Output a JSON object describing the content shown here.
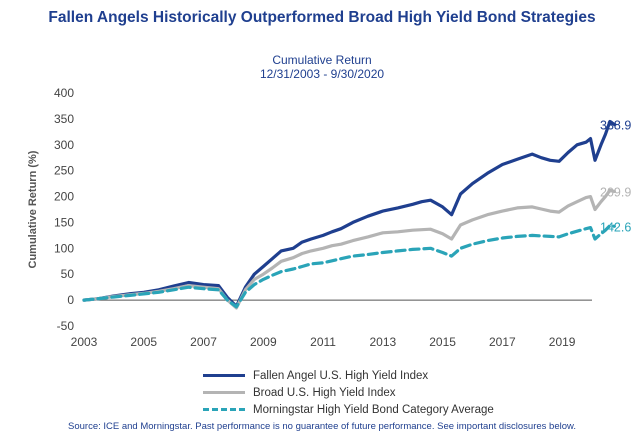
{
  "header": {
    "title": "Fallen Angels Historically Outperformed Broad High Yield Bond Strategies",
    "subtitle_line1": "Cumulative Return",
    "subtitle_line2": "12/31/2003 - 9/30/2020"
  },
  "footer": {
    "source": "Source: ICE and Morningstar. Past performance is no guarantee of future performance. See important disclosures below."
  },
  "chart_data": {
    "type": "line",
    "ylabel": "Cumulative Return (%)",
    "xlabel": "",
    "xlim": [
      2003,
      2020
    ],
    "ylim": [
      -50,
      400
    ],
    "grid": false,
    "legend_position": "bottom-center",
    "x_ticks": [
      "2003",
      "2005",
      "2007",
      "2009",
      "2011",
      "2013",
      "2015",
      "2017",
      "2019"
    ],
    "y_ticks": [
      "400",
      "350",
      "300",
      "250",
      "200",
      "150",
      "100",
      "50",
      "0",
      "-50"
    ],
    "x": [
      2003.0,
      2003.5,
      2004.0,
      2004.5,
      2005.0,
      2005.5,
      2006.0,
      2006.5,
      2007.0,
      2007.5,
      2007.8,
      2008.1,
      2008.4,
      2008.7,
      2009.0,
      2009.3,
      2009.6,
      2010.0,
      2010.3,
      2010.6,
      2011.0,
      2011.3,
      2011.6,
      2012.0,
      2012.5,
      2013.0,
      2013.5,
      2014.0,
      2014.3,
      2014.6,
      2015.0,
      2015.3,
      2015.6,
      2016.0,
      2016.5,
      2017.0,
      2017.5,
      2018.0,
      2018.3,
      2018.6,
      2018.9,
      2019.2,
      2019.5,
      2019.8,
      2019.95,
      2020.1,
      2020.3,
      2020.45,
      2020.6,
      2020.75
    ],
    "series": [
      {
        "name": "Fallen Angel U.S. High Yield Index",
        "color": "#1f3f8f",
        "style": "solid",
        "end_label": "338.9",
        "values": [
          0,
          3,
          8,
          12,
          15,
          20,
          27,
          34,
          30,
          28,
          5,
          -12,
          25,
          50,
          65,
          80,
          95,
          100,
          112,
          118,
          125,
          132,
          138,
          150,
          162,
          172,
          178,
          185,
          190,
          193,
          180,
          165,
          205,
          225,
          245,
          262,
          272,
          282,
          275,
          270,
          268,
          285,
          300,
          305,
          312,
          270,
          300,
          320,
          345,
          338.9
        ]
      },
      {
        "name": "Broad U.S. High Yield Index",
        "color": "#b4b4b4",
        "style": "solid",
        "end_label": "209.9",
        "values": [
          0,
          3,
          7,
          10,
          13,
          17,
          22,
          28,
          25,
          22,
          0,
          -15,
          20,
          40,
          50,
          62,
          75,
          82,
          90,
          95,
          100,
          105,
          108,
          115,
          122,
          130,
          132,
          135,
          136,
          137,
          128,
          118,
          145,
          155,
          165,
          172,
          178,
          180,
          176,
          172,
          170,
          182,
          190,
          198,
          200,
          175,
          190,
          200,
          212,
          209.9
        ]
      },
      {
        "name": "Morningstar High Yield Bond Category Average",
        "color": "#2aa4b8",
        "style": "dashed",
        "end_label": "142.6",
        "values": [
          0,
          3,
          6,
          9,
          12,
          15,
          20,
          25,
          22,
          20,
          0,
          -13,
          15,
          30,
          40,
          48,
          55,
          60,
          65,
          70,
          72,
          76,
          80,
          85,
          88,
          92,
          95,
          98,
          99,
          100,
          92,
          85,
          100,
          108,
          115,
          120,
          123,
          125,
          124,
          123,
          122,
          128,
          133,
          138,
          140,
          118,
          128,
          135,
          144,
          142.6
        ]
      }
    ]
  }
}
